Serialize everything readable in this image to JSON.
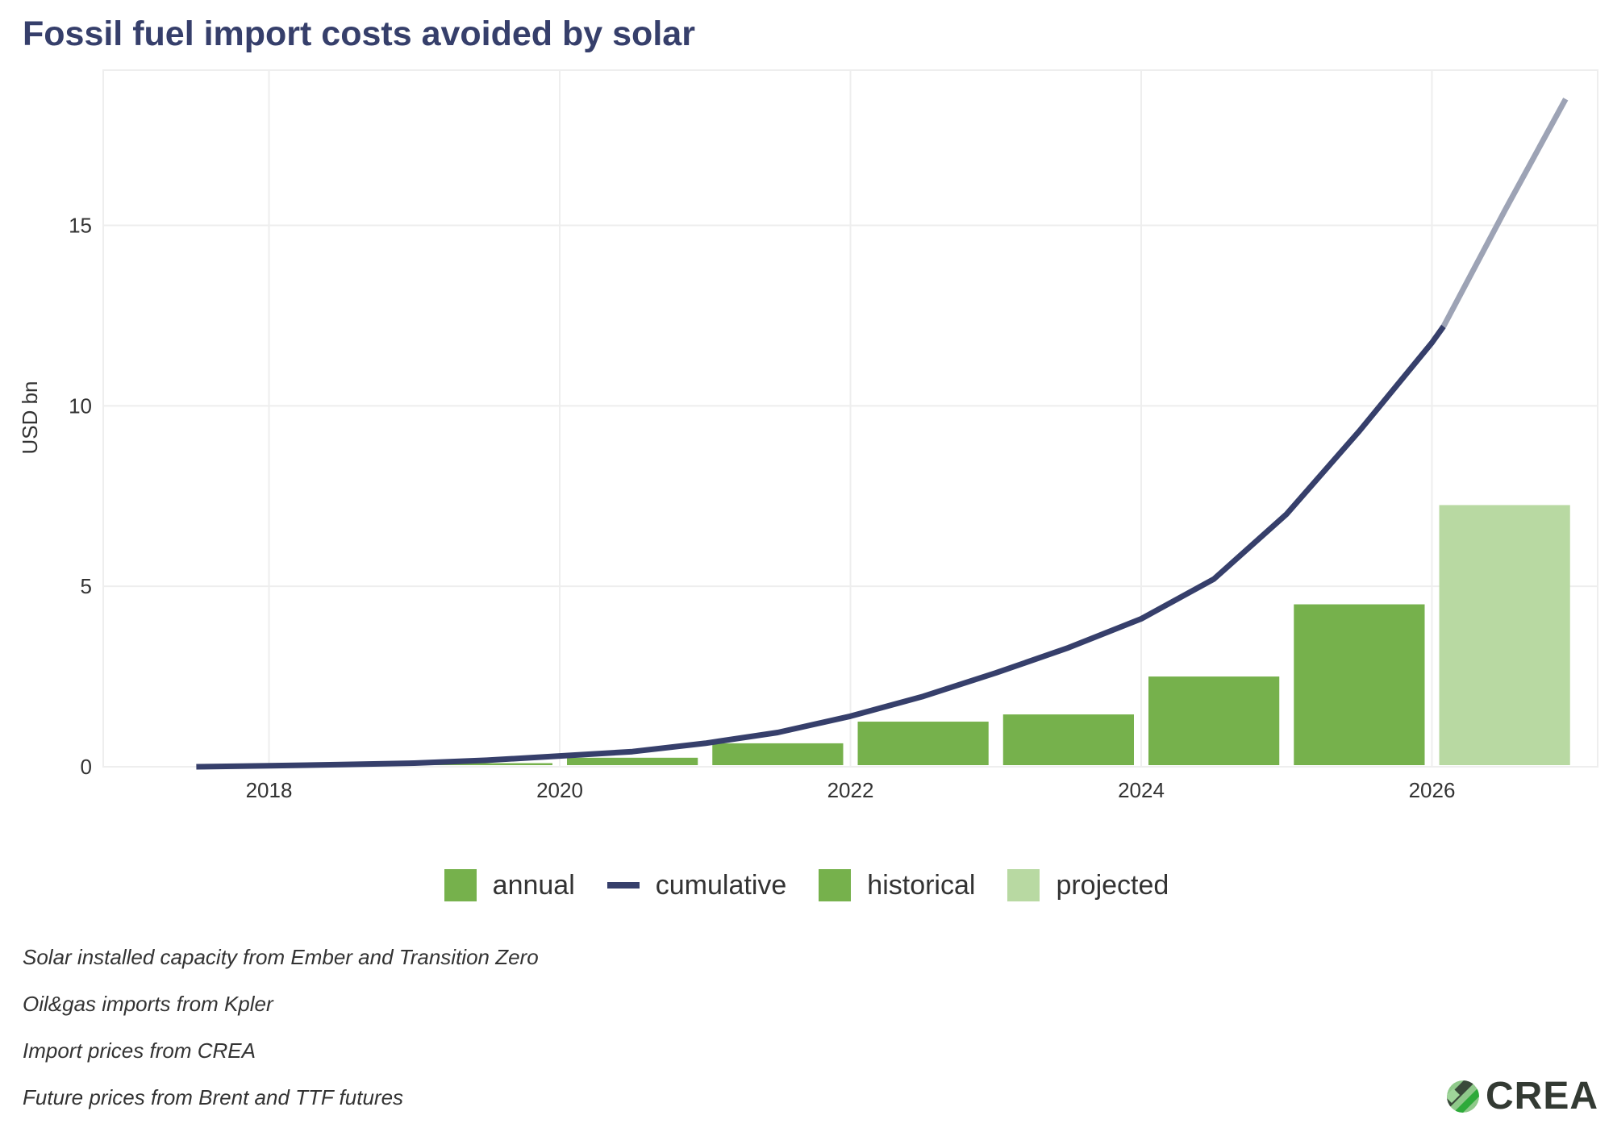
{
  "chart_data": {
    "type": "bar",
    "title": "Fossil fuel import costs avoided by solar",
    "xlabel": "",
    "ylabel": "USD bn",
    "xlim": [
      2016.86,
      2027.14
    ],
    "ylim": [
      0,
      19.3
    ],
    "x_ticks": [
      "2018",
      "2020",
      "2022",
      "2024",
      "2026"
    ],
    "y_ticks": [
      "0",
      "5",
      "10",
      "15"
    ],
    "grid": true,
    "legend_position": "bottom",
    "legend": [
      "annual",
      "cumulative",
      "historical",
      "projected"
    ],
    "colors": {
      "historical": "#76b14c",
      "projected": "#b8d9a2",
      "cumulative": "#363f6b",
      "cumulative_projected": "#9da3b5"
    },
    "annual": {
      "years": [
        2018,
        2019,
        2020,
        2021,
        2022,
        2023,
        2024,
        2025,
        2026
      ],
      "values": [
        0.02,
        0.1,
        0.25,
        0.65,
        1.25,
        1.45,
        2.5,
        4.5,
        7.25
      ],
      "status": [
        "historical",
        "historical",
        "historical",
        "historical",
        "historical",
        "historical",
        "historical",
        "historical",
        "projected"
      ]
    },
    "cumulative": {
      "x": [
        2017.5,
        2018,
        2018.5,
        2019,
        2019.5,
        2020,
        2020.5,
        2021,
        2021.5,
        2022,
        2022.5,
        2023,
        2023.5,
        2024,
        2024.5,
        2025,
        2025.5,
        2026,
        2026.08
      ],
      "values": [
        0,
        0.03,
        0.06,
        0.1,
        0.18,
        0.3,
        0.42,
        0.65,
        0.95,
        1.4,
        1.95,
        2.6,
        3.3,
        4.1,
        5.2,
        7.0,
        9.3,
        11.75,
        12.2
      ]
    },
    "cumulative_projected": {
      "x": [
        2026.08,
        2026.5,
        2026.92
      ],
      "values": [
        12.2,
        15.4,
        18.5
      ]
    }
  },
  "notes": [
    "Solar installed capacity from Ember and Transition Zero",
    "Oil&gas imports from Kpler",
    "Import prices from CREA",
    "Future prices from Brent and TTF futures"
  ],
  "logo": {
    "text": "CREA"
  }
}
